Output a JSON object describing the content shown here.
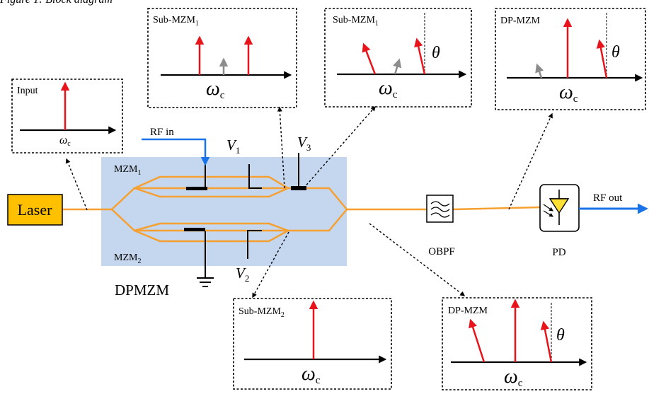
{
  "header": {
    "caption": "Figure 1: Block diagram"
  },
  "modulator": {
    "name": "DPMZM",
    "mzm1": {
      "base": "MZM",
      "sub": "1"
    },
    "mzm2": {
      "base": "MZM",
      "sub": "2"
    }
  },
  "laser": {
    "label": "Laser"
  },
  "rf_in": {
    "label": "RF in"
  },
  "rf_out": {
    "label": "RF out"
  },
  "bias": {
    "v1": {
      "base": "V",
      "sub": "1"
    },
    "v2": {
      "base": "V",
      "sub": "2"
    },
    "v3": {
      "base": "V",
      "sub": "3"
    }
  },
  "obpf": {
    "label": "OBPF"
  },
  "pd": {
    "label": "PD"
  },
  "spectra": {
    "input": {
      "title": "Input",
      "carrier": {
        "base": "ω",
        "sub": "c"
      }
    },
    "sub_mzm1_a": {
      "title_base": "Sub-MZM",
      "title_sub": "1",
      "carrier": {
        "base": "ω",
        "sub": "c"
      }
    },
    "sub_mzm1_b": {
      "title_base": "Sub-MZM",
      "title_sub": "1",
      "carrier": {
        "base": "ω",
        "sub": "c"
      },
      "angle": "θ"
    },
    "dp_mzm_top": {
      "title": "DP-MZM",
      "carrier": {
        "base": "ω",
        "sub": "c"
      },
      "angle": "θ"
    },
    "sub_mzm2": {
      "title_base": "Sub-MZM",
      "title_sub": "2",
      "carrier": {
        "base": "ω",
        "sub": "c"
      }
    },
    "dp_mzm_bottom": {
      "title": "DP-MZM",
      "carrier": {
        "base": "ω",
        "sub": "c"
      },
      "angle": "θ"
    }
  },
  "colors": {
    "fiber": "#f5a030",
    "laser_fill": "#ffc000",
    "rf_line": "#1a73e8",
    "modulator_bg": "#c5d7ee",
    "spectral_line": "#e8141c",
    "residual_line": "#8c8c8c"
  }
}
